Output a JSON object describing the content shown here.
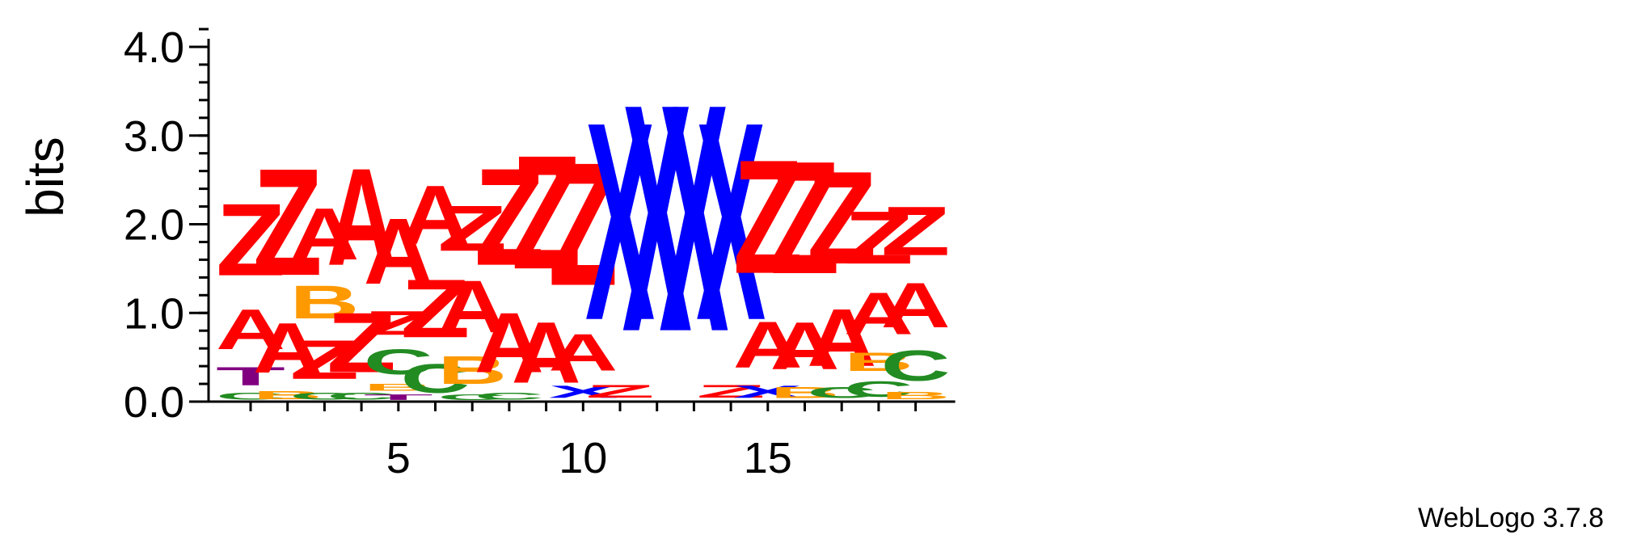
{
  "chart_data": {
    "type": "sequence-logo",
    "title": "",
    "xlabel": "",
    "ylabel": "bits",
    "ylim": [
      0,
      4.2
    ],
    "y_ticks": [
      {
        "value": 0.0,
        "label": "0.0"
      },
      {
        "value": 1.0,
        "label": "1.0"
      },
      {
        "value": 2.0,
        "label": "2.0"
      },
      {
        "value": 3.0,
        "label": "3.0"
      },
      {
        "value": 4.0,
        "label": "4.0"
      }
    ],
    "x_ticks": [
      {
        "value": 5,
        "label": "5"
      },
      {
        "value": 10,
        "label": "10"
      },
      {
        "value": 15,
        "label": "15"
      }
    ],
    "positions": [
      1,
      2,
      3,
      4,
      5,
      6,
      7,
      8,
      9,
      10,
      11,
      12,
      13,
      14,
      15,
      16,
      17,
      18,
      19
    ],
    "colors": {
      "A": "#ff0000",
      "Z": "#ff0000",
      "X": "#0000ff",
      "B": "#ff9900",
      "C": "#228b22",
      "T": "#800080"
    },
    "stacks": [
      {
        "position": 1,
        "letters": [
          {
            "letter": "C",
            "height": 0.12
          },
          {
            "letter": "T",
            "height": 0.33
          },
          {
            "letter": "A",
            "height": 0.72
          },
          {
            "letter": "Z",
            "height": 1.3
          }
        ]
      },
      {
        "position": 2,
        "letters": [
          {
            "letter": "B",
            "height": 0.15
          },
          {
            "letter": "A",
            "height": 0.9
          },
          {
            "letter": "Z",
            "height": 1.93
          }
        ]
      },
      {
        "position": 3,
        "letters": [
          {
            "letter": "C",
            "height": 0.12
          },
          {
            "letter": "Z",
            "height": 0.7
          },
          {
            "letter": "B",
            "height": 0.6
          },
          {
            "letter": "A",
            "height": 0.93
          }
        ]
      },
      {
        "position": 4,
        "letters": [
          {
            "letter": "C",
            "height": 0.12
          },
          {
            "letter": "Z",
            "height": 1.08
          },
          {
            "letter": "A",
            "height": 1.75
          }
        ]
      },
      {
        "position": 5,
        "letters": [
          {
            "letter": "T",
            "height": 0.1
          },
          {
            "letter": "B",
            "height": 0.12
          },
          {
            "letter": "C",
            "height": 0.45
          },
          {
            "letter": "Z",
            "height": 0.43
          },
          {
            "letter": "A",
            "height": 1.18
          }
        ]
      },
      {
        "position": 6,
        "letters": [
          {
            "letter": "C",
            "height": 0.52
          },
          {
            "letter": "Z",
            "height": 1.05
          },
          {
            "letter": "A",
            "height": 1.06
          }
        ]
      },
      {
        "position": 7,
        "letters": [
          {
            "letter": "C",
            "height": 0.1
          },
          {
            "letter": "B",
            "height": 0.5
          },
          {
            "letter": "A",
            "height": 0.94
          },
          {
            "letter": "Z",
            "height": 0.82
          }
        ]
      },
      {
        "position": 8,
        "letters": [
          {
            "letter": "C",
            "height": 0.12
          },
          {
            "letter": "A",
            "height": 1.08
          },
          {
            "letter": "Z",
            "height": 1.75
          }
        ]
      },
      {
        "position": 9,
        "letters": [
          {
            "letter": "A",
            "height": 1.1
          },
          {
            "letter": "Z",
            "height": 2.05
          }
        ]
      },
      {
        "position": 10,
        "letters": [
          {
            "letter": "X",
            "height": 0.22
          },
          {
            "letter": "A",
            "height": 0.66
          },
          {
            "letter": "Z",
            "height": 2.22
          }
        ]
      },
      {
        "position": 11,
        "letters": [
          {
            "letter": "Z",
            "height": 0.23
          },
          {
            "letter": "X",
            "height": 3.57
          }
        ]
      },
      {
        "position": 12,
        "letters": [
          {
            "letter": "X",
            "height": 4.1
          }
        ]
      },
      {
        "position": 13,
        "letters": [
          {
            "letter": "X",
            "height": 4.1
          }
        ]
      },
      {
        "position": 14,
        "letters": [
          {
            "letter": "Z",
            "height": 0.23
          },
          {
            "letter": "X",
            "height": 3.57
          }
        ]
      },
      {
        "position": 15,
        "letters": [
          {
            "letter": "X",
            "height": 0.22
          },
          {
            "letter": "A",
            "height": 0.83
          },
          {
            "letter": "Z",
            "height": 2.05
          }
        ]
      },
      {
        "position": 16,
        "letters": [
          {
            "letter": "B",
            "height": 0.2
          },
          {
            "letter": "A",
            "height": 0.85
          },
          {
            "letter": "Z",
            "height": 2.03
          }
        ]
      },
      {
        "position": 17,
        "letters": [
          {
            "letter": "C",
            "height": 0.2
          },
          {
            "letter": "A",
            "height": 1.03
          },
          {
            "letter": "Z",
            "height": 1.67
          }
        ]
      },
      {
        "position": 18,
        "letters": [
          {
            "letter": "C",
            "height": 0.28
          },
          {
            "letter": "B",
            "height": 0.33
          },
          {
            "letter": "A",
            "height": 0.76
          },
          {
            "letter": "Z",
            "height": 0.95
          }
        ]
      },
      {
        "position": 19,
        "letters": [
          {
            "letter": "B",
            "height": 0.13
          },
          {
            "letter": "C",
            "height": 0.55
          },
          {
            "letter": "A",
            "height": 0.8
          },
          {
            "letter": "Z",
            "height": 0.88
          }
        ]
      }
    ]
  },
  "credit": "WebLogo 3.7.8"
}
